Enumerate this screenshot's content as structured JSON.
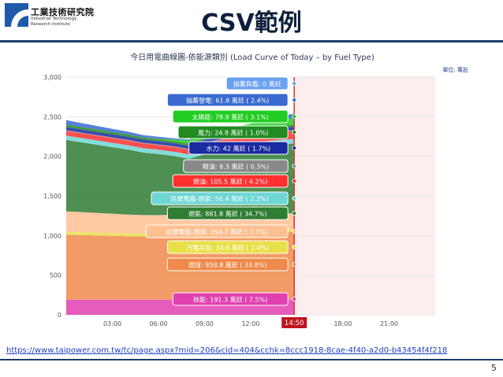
{
  "logo": {
    "name_cn": "工業技術研究院",
    "name_en_line1": "Industrial Technology",
    "name_en_line2": "Research Institute",
    "colors": [
      "#1e5aa8",
      "#ffffff"
    ]
  },
  "slide": {
    "title": "CSV範例",
    "page_number": "5"
  },
  "source_link": "https://www.taipower.com.tw/tc/page.aspx?mid=206&cid=404&cchk=8ccc1918-8cae-4f40-a2d0-b43454f4f218",
  "chart_data": {
    "type": "area",
    "title": "今日用電曲線圖-依能源類別 (Load Curve of Today – by Fuel Type)",
    "unit_label": "單位: 萬瓩",
    "ylim": [
      0,
      3000
    ],
    "y_ticks": [
      "0",
      "500",
      "1,000",
      "1,500",
      "2,000",
      "2,500",
      "3,000"
    ],
    "x_ticks": [
      "03:00",
      "06:00",
      "09:00",
      "12:00",
      "18:00",
      "21:00"
    ],
    "current_time_label": "14:50",
    "x_hours": [
      0,
      1,
      2,
      3,
      4,
      5,
      6,
      7,
      8,
      9,
      10,
      11,
      12,
      13,
      14,
      14.83
    ],
    "series": [
      {
        "name": "核能",
        "color": "#e040b0",
        "values": [
          191,
          191,
          191,
          191,
          191,
          191,
          191,
          191,
          191,
          191,
          191,
          191,
          191,
          191,
          191,
          191
        ]
      },
      {
        "name": "燃煤",
        "color": "#f08a4b",
        "values": [
          820,
          815,
          810,
          805,
          800,
          798,
          800,
          808,
          825,
          835,
          845,
          850,
          855,
          857,
          858,
          859
        ]
      },
      {
        "name": "汽電共生",
        "color": "#e8e04a",
        "values": [
          35,
          35,
          35,
          35,
          35,
          35,
          35,
          35,
          35,
          35,
          35,
          35,
          35,
          35,
          35,
          35
        ]
      },
      {
        "name": "民營電廠-燃煤",
        "color": "#ffc090",
        "values": [
          260,
          255,
          250,
          245,
          240,
          235,
          232,
          230,
          228,
          225,
          210,
          195,
          195,
          195,
          195,
          195
        ]
      },
      {
        "name": "燃氣",
        "color": "#2e7d32",
        "values": [
          900,
          880,
          860,
          840,
          820,
          790,
          770,
          740,
          690,
          740,
          780,
          800,
          830,
          860,
          875,
          882
        ]
      },
      {
        "name": "民營電廠-燃氣",
        "color": "#6fd6d6",
        "values": [
          55,
          55,
          55,
          55,
          55,
          55,
          55,
          55,
          55,
          55,
          55,
          55,
          55,
          55,
          56,
          56
        ]
      },
      {
        "name": "燃油",
        "color": "#ff3030",
        "values": [
          60,
          60,
          60,
          60,
          60,
          60,
          60,
          60,
          60,
          80,
          90,
          95,
          100,
          103,
          105,
          106
        ]
      },
      {
        "name": "輕油",
        "color": "#999999",
        "values": [
          8,
          8,
          8,
          8,
          8,
          8,
          8,
          8,
          8,
          8,
          8,
          8,
          8,
          8,
          8,
          8
        ]
      },
      {
        "name": "水力",
        "color": "#1a2aa0",
        "values": [
          40,
          40,
          40,
          40,
          40,
          40,
          40,
          40,
          40,
          40,
          40,
          40,
          40,
          41,
          42,
          42
        ]
      },
      {
        "name": "風力",
        "color": "#228b22",
        "values": [
          30,
          30,
          30,
          28,
          28,
          27,
          27,
          26,
          26,
          25,
          25,
          25,
          25,
          25,
          25,
          25
        ]
      },
      {
        "name": "太陽能",
        "color": "#22cc22",
        "values": [
          0,
          0,
          0,
          0,
          0,
          0,
          5,
          20,
          45,
          65,
          75,
          79,
          79,
          79,
          79,
          79
        ]
      },
      {
        "name": "抽蓄發電",
        "color": "#3a6ad0",
        "values": [
          60,
          50,
          45,
          40,
          35,
          30,
          25,
          15,
          10,
          5,
          0,
          0,
          0,
          10,
          40,
          62
        ]
      },
      {
        "name": "抽蓄負載",
        "color": "#6aa0f0",
        "values": [
          0,
          0,
          0,
          0,
          0,
          0,
          0,
          0,
          0,
          0,
          0,
          0,
          0,
          0,
          0,
          0
        ]
      }
    ],
    "tooltip_labels": [
      {
        "text": "抽蓄負載: 0 萬瓩",
        "color": "#6aa0f0"
      },
      {
        "text": "抽蓄發電: 61.8 萬瓩 ( 2.4%)",
        "color": "#3a6ad0"
      },
      {
        "text": "太陽能: 78.9 萬瓩 ( 3.1%)",
        "color": "#22cc22"
      },
      {
        "text": "風力: 24.8 萬瓩 ( 1.0%)",
        "color": "#228b22"
      },
      {
        "text": "水力: 42 萬瓩 ( 1.7%)",
        "color": "#1a2aa0"
      },
      {
        "text": "輕油: 8.3 萬瓩 ( 0.3%)",
        "color": "#888888"
      },
      {
        "text": "燃油: 105.5 萬瓩 ( 4.2%)",
        "color": "#ff3030"
      },
      {
        "text": "民營電廠-燃氣: 56.4 萬瓩 ( 2.2%)",
        "color": "#6fd6d6"
      },
      {
        "text": "燃氣: 881.8 萬瓩 ( 34.7%)",
        "color": "#2e7d32"
      },
      {
        "text": "民營電廠-燃煤: 194.7 萬瓩 ( 7.7%)",
        "color": "#ffc090"
      },
      {
        "text": "汽電共生: 34.6 萬瓩 ( 1.4%)",
        "color": "#e8e04a"
      },
      {
        "text": "燃煤: 858.8 萬瓩 ( 33.8%)",
        "color": "#f08a4b"
      },
      {
        "text": "核能: 191.3 萬瓩 ( 7.5%)",
        "color": "#e040b0"
      }
    ]
  }
}
